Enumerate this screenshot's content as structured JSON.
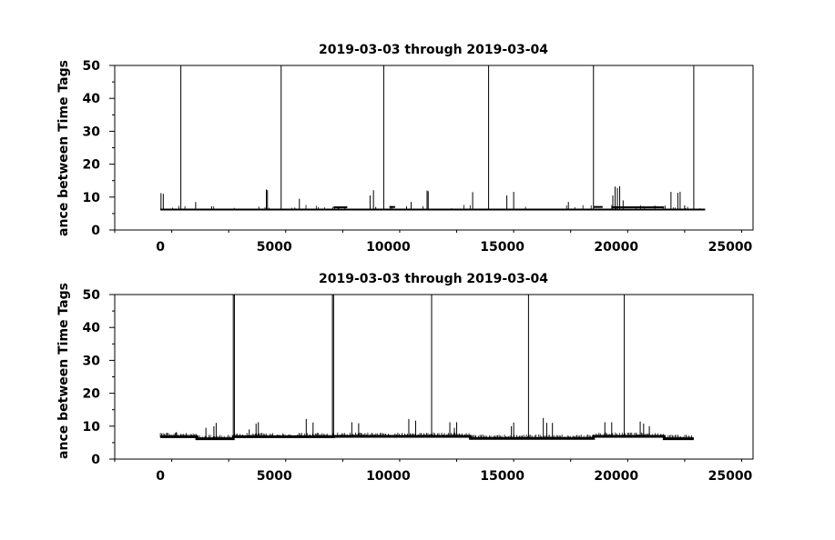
{
  "chart_data": [
    {
      "type": "line",
      "title": "2019-03-03 through 2019-03-04",
      "ylabel": "ance between Time Tags",
      "xlabel": "",
      "xlim": [
        -2000,
        26000
      ],
      "ylim": [
        0,
        50
      ],
      "xticks": [
        0,
        5000,
        10000,
        15000,
        20000,
        25000
      ],
      "xtick_labels": [
        "0",
        "5000",
        "10000",
        "15000",
        "20000",
        "25000"
      ],
      "yticks": [
        0,
        10,
        20,
        30,
        40,
        50
      ],
      "ytick_labels": [
        "0",
        "10",
        "20",
        "30",
        "40",
        "50"
      ],
      "x_end": 23900,
      "baseline": 6.2,
      "tall_spikes": [
        {
          "x": 900,
          "y": 50
        },
        {
          "x": 5300,
          "y": 50
        },
        {
          "x": 9800,
          "y": 50
        },
        {
          "x": 14400,
          "y": 50
        },
        {
          "x": 19000,
          "y": 50
        },
        {
          "x": 23400,
          "y": 50
        }
      ],
      "small_spikes": [
        {
          "x": 30,
          "y": 11.2
        },
        {
          "x": 130,
          "y": 11
        },
        {
          "x": 1550,
          "y": 8.5
        },
        {
          "x": 2250,
          "y": 7.2
        },
        {
          "x": 4650,
          "y": 12.3
        },
        {
          "x": 4700,
          "y": 12.1
        },
        {
          "x": 5900,
          "y": 6.8
        },
        {
          "x": 6100,
          "y": 9.5
        },
        {
          "x": 7800,
          "y": 7
        },
        {
          "x": 8100,
          "y": 7.2
        },
        {
          "x": 9200,
          "y": 10.5
        },
        {
          "x": 9350,
          "y": 12.1
        },
        {
          "x": 9450,
          "y": 7
        },
        {
          "x": 10100,
          "y": 7.3
        },
        {
          "x": 10800,
          "y": 7.2
        },
        {
          "x": 11000,
          "y": 8.5
        },
        {
          "x": 11700,
          "y": 12
        },
        {
          "x": 11750,
          "y": 11.8
        },
        {
          "x": 13700,
          "y": 11.5
        },
        {
          "x": 15200,
          "y": 10.5
        },
        {
          "x": 15500,
          "y": 11.6
        },
        {
          "x": 17900,
          "y": 8.5
        },
        {
          "x": 19850,
          "y": 10.5
        },
        {
          "x": 19950,
          "y": 13.2
        },
        {
          "x": 20050,
          "y": 12.8
        },
        {
          "x": 20150,
          "y": 13.3
        },
        {
          "x": 20300,
          "y": 9
        },
        {
          "x": 22400,
          "y": 11.6
        },
        {
          "x": 22700,
          "y": 11.3
        },
        {
          "x": 22800,
          "y": 11.6
        },
        {
          "x": 23000,
          "y": 7.5
        }
      ],
      "thick_bands": [
        {
          "from": 7600,
          "to": 8200,
          "y": 6.9
        },
        {
          "from": 10050,
          "to": 10300,
          "y": 7
        },
        {
          "from": 19000,
          "to": 19400,
          "y": 7
        },
        {
          "from": 19800,
          "to": 22100,
          "y": 6.9
        }
      ]
    },
    {
      "type": "line",
      "title": "2019-03-03 through 2019-03-04",
      "ylabel": "ance between Time Tags",
      "xlabel": "",
      "xlim": [
        -2000,
        26000
      ],
      "ylim": [
        0,
        50
      ],
      "xticks": [
        0,
        5000,
        10000,
        15000,
        20000,
        25000
      ],
      "xtick_labels": [
        "0",
        "5000",
        "10000",
        "15000",
        "20000",
        "25000"
      ],
      "yticks": [
        0,
        10,
        20,
        30,
        40,
        50
      ],
      "ytick_labels": [
        "0",
        "10",
        "20",
        "30",
        "40",
        "50"
      ],
      "x_end": 23400,
      "segments": [
        {
          "from": 0,
          "to": 1600,
          "y": 6.8
        },
        {
          "from": 1600,
          "to": 3200,
          "y": 6.2
        },
        {
          "from": 3200,
          "to": 7600,
          "y": 6.8
        },
        {
          "from": 7600,
          "to": 13600,
          "y": 6.9
        },
        {
          "from": 13600,
          "to": 19000,
          "y": 6.3
        },
        {
          "from": 19000,
          "to": 22100,
          "y": 6.9
        },
        {
          "from": 22100,
          "to": 23400,
          "y": 6.2
        }
      ],
      "tall_spikes": [
        {
          "x": 3200,
          "y": 50
        },
        {
          "x": 3250,
          "y": 50
        },
        {
          "x": 7550,
          "y": 50
        },
        {
          "x": 7600,
          "y": 50
        },
        {
          "x": 11900,
          "y": 50
        },
        {
          "x": 16150,
          "y": 50
        },
        {
          "x": 20350,
          "y": 50
        }
      ],
      "small_spikes": [
        {
          "x": 300,
          "y": 8
        },
        {
          "x": 700,
          "y": 8.2
        },
        {
          "x": 900,
          "y": 7.6
        },
        {
          "x": 2000,
          "y": 9.5
        },
        {
          "x": 2350,
          "y": 10
        },
        {
          "x": 2450,
          "y": 11
        },
        {
          "x": 3900,
          "y": 9
        },
        {
          "x": 4200,
          "y": 10.8
        },
        {
          "x": 4300,
          "y": 11.2
        },
        {
          "x": 6400,
          "y": 12.2
        },
        {
          "x": 6700,
          "y": 11.1
        },
        {
          "x": 6900,
          "y": 8
        },
        {
          "x": 8400,
          "y": 11.2
        },
        {
          "x": 8700,
          "y": 10.9
        },
        {
          "x": 8800,
          "y": 8
        },
        {
          "x": 10900,
          "y": 12.2
        },
        {
          "x": 11200,
          "y": 11.7
        },
        {
          "x": 12700,
          "y": 11.2
        },
        {
          "x": 12900,
          "y": 9.5
        },
        {
          "x": 13000,
          "y": 11.2
        },
        {
          "x": 15400,
          "y": 10
        },
        {
          "x": 15500,
          "y": 11.1
        },
        {
          "x": 16800,
          "y": 12.5
        },
        {
          "x": 16950,
          "y": 11
        },
        {
          "x": 17200,
          "y": 11
        },
        {
          "x": 19500,
          "y": 11.2
        },
        {
          "x": 19800,
          "y": 11.2
        },
        {
          "x": 21050,
          "y": 11.4
        },
        {
          "x": 21200,
          "y": 10.8
        },
        {
          "x": 21450,
          "y": 10
        }
      ]
    }
  ]
}
